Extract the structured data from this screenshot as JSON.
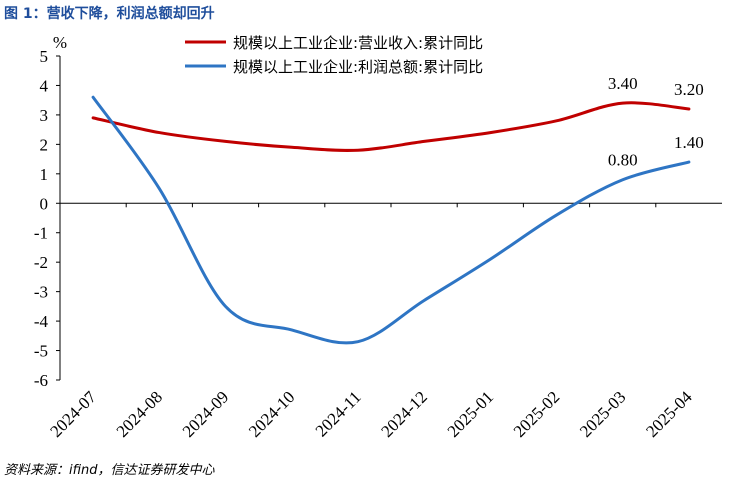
{
  "figure": {
    "title": "图 1：营收下降，利润总额却回升",
    "source": "资料来源：ifind，信达证券研发中心"
  },
  "chart_data": {
    "type": "line",
    "title": "",
    "ylabel": "%",
    "xlabel": "",
    "ylim": [
      -6,
      5
    ],
    "yticks": [
      "5",
      "4",
      "3",
      "2",
      "1",
      "0",
      "-1",
      "-2",
      "-3",
      "-4",
      "-5",
      "-6"
    ],
    "categories": [
      "2024-07",
      "2024-08",
      "2024-09",
      "2024-10",
      "2024-11",
      "2024-12",
      "2025-01",
      "2025-02",
      "2025-03",
      "2025-04"
    ],
    "grid": false,
    "legend": "top-right",
    "series": [
      {
        "name": "规模以上工业企业:营业收入:累计同比",
        "color": "#c00000",
        "values": [
          2.9,
          2.4,
          2.1,
          1.9,
          1.8,
          2.1,
          2.4,
          2.8,
          3.4,
          3.2
        ],
        "labels": [
          null,
          null,
          null,
          null,
          null,
          null,
          null,
          null,
          "3.40",
          "3.20"
        ]
      },
      {
        "name": "规模以上工业企业:利润总额:累计同比",
        "color": "#2e75c4",
        "values": [
          3.6,
          0.5,
          -3.5,
          -4.3,
          -4.7,
          -3.3,
          -1.9,
          -0.4,
          0.8,
          1.4
        ],
        "labels": [
          null,
          null,
          null,
          null,
          null,
          null,
          null,
          null,
          "0.80",
          "1.40"
        ]
      }
    ]
  }
}
